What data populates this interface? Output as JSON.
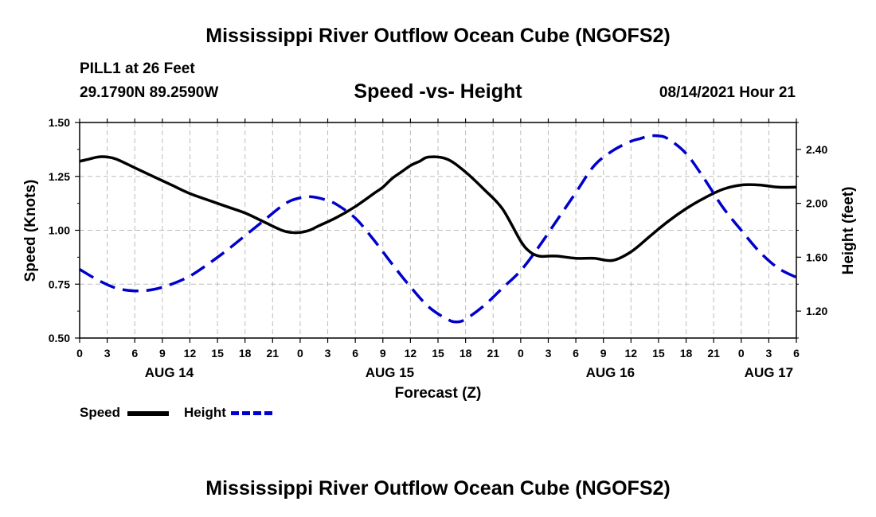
{
  "page": {
    "title": "Mississippi River Outflow Ocean Cube (NGOFS2)",
    "footer_title": "Mississippi River Outflow Ocean Cube (NGOFS2)",
    "station": "PILL1 at 26 Feet",
    "coordinates": "29.1790N  89.2590W",
    "subtitle": "Speed -vs- Height",
    "datetime": "08/14/2021 Hour 21"
  },
  "chart_data": {
    "type": "line",
    "title": "Speed -vs- Height",
    "xlabel": "Forecast (Z)",
    "ylabel": "Speed (Knots)",
    "y2label": "Height (feet)",
    "ylim": [
      0.5,
      1.5
    ],
    "y2lim": [
      1.0,
      2.6
    ],
    "yticks": [
      "0.50",
      "0.75",
      "1.00",
      "1.25",
      "1.50"
    ],
    "y2ticks": [
      "1.20",
      "1.60",
      "2.00",
      "2.40"
    ],
    "xlim": [
      0,
      78
    ],
    "xtick_labels": [
      "0",
      "3",
      "6",
      "9",
      "12",
      "15",
      "18",
      "21",
      "0",
      "3",
      "6",
      "9",
      "12",
      "15",
      "18",
      "21",
      "0",
      "3",
      "6",
      "9",
      "12",
      "15",
      "18",
      "21",
      "0",
      "3",
      "6"
    ],
    "day_labels": [
      {
        "label": "AUG 14",
        "x": 9.75
      },
      {
        "label": "AUG 15",
        "x": 33.75
      },
      {
        "label": "AUG 16",
        "x": 57.75
      },
      {
        "label": "AUG 17",
        "x": 75
      }
    ],
    "grid": true,
    "colors": {
      "speed": "#000000",
      "height": "#0000cc",
      "grid": "#bbbbbb"
    },
    "series": [
      {
        "name": "Speed",
        "axis": "left",
        "style": "solid",
        "x": [
          0,
          1,
          2,
          3,
          4,
          6,
          8,
          10,
          12,
          14,
          16,
          18,
          20,
          22,
          23,
          24,
          25,
          26,
          28,
          30,
          32,
          33,
          34,
          35,
          36,
          37,
          38,
          40,
          42,
          44,
          46,
          48,
          49,
          50,
          51,
          52,
          54,
          56,
          58,
          60,
          62,
          64,
          66,
          68,
          70,
          72,
          74,
          76,
          78
        ],
        "values": [
          1.32,
          1.33,
          1.34,
          1.34,
          1.33,
          1.29,
          1.25,
          1.21,
          1.17,
          1.14,
          1.11,
          1.08,
          1.04,
          1.0,
          0.99,
          0.99,
          1.0,
          1.02,
          1.06,
          1.11,
          1.17,
          1.2,
          1.24,
          1.27,
          1.3,
          1.32,
          1.34,
          1.33,
          1.27,
          1.19,
          1.1,
          0.95,
          0.9,
          0.88,
          0.88,
          0.88,
          0.87,
          0.87,
          0.86,
          0.9,
          0.97,
          1.04,
          1.1,
          1.15,
          1.19,
          1.21,
          1.21,
          1.2,
          1.2
        ]
      },
      {
        "name": "Height",
        "axis": "right",
        "style": "dashed",
        "x": [
          0,
          2,
          4,
          6,
          8,
          10,
          12,
          14,
          16,
          18,
          20,
          22,
          23,
          24,
          25,
          26,
          27,
          28,
          30,
          32,
          34,
          36,
          38,
          40,
          41,
          42,
          44,
          46,
          48,
          50,
          52,
          54,
          56,
          58,
          60,
          61,
          62,
          63,
          64,
          66,
          68,
          70,
          72,
          74,
          76,
          78
        ],
        "values": [
          1.51,
          1.43,
          1.37,
          1.35,
          1.36,
          1.4,
          1.46,
          1.55,
          1.65,
          1.76,
          1.87,
          1.98,
          2.02,
          2.04,
          2.05,
          2.04,
          2.02,
          1.99,
          1.89,
          1.73,
          1.55,
          1.38,
          1.23,
          1.14,
          1.12,
          1.14,
          1.24,
          1.37,
          1.5,
          1.68,
          1.88,
          2.08,
          2.28,
          2.39,
          2.46,
          2.48,
          2.5,
          2.5,
          2.48,
          2.37,
          2.18,
          1.97,
          1.8,
          1.64,
          1.52,
          1.45
        ]
      }
    ]
  },
  "legend": {
    "speed_label": "Speed",
    "height_label": "Height"
  }
}
